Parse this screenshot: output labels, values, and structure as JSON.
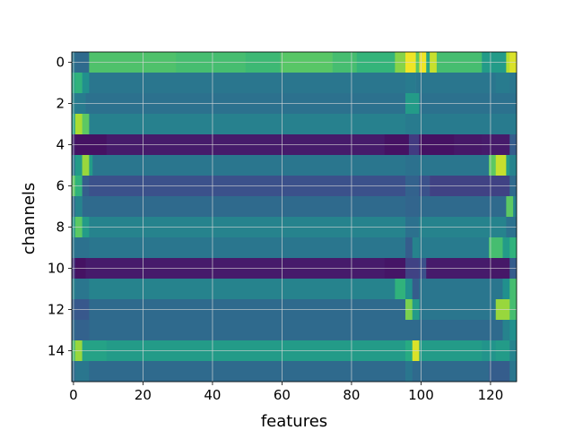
{
  "chart_data": {
    "type": "heatmap",
    "title": "",
    "xlabel": "features",
    "ylabel": "channels",
    "xlim": [
      -0.5,
      127.5
    ],
    "ylim": [
      15.5,
      -0.5
    ],
    "n_rows": 16,
    "n_cols": 128,
    "x_ticks": [
      0,
      20,
      40,
      60,
      80,
      100,
      120
    ],
    "y_ticks": [
      0,
      2,
      4,
      6,
      8,
      10,
      12,
      14
    ],
    "grid": true,
    "colormap": "viridis",
    "value_range": [
      0,
      1
    ],
    "rows": [
      {
        "channel": 0,
        "segments": [
          [
            0,
            1,
            0.4
          ],
          [
            1,
            5,
            0.35
          ],
          [
            5,
            30,
            0.72
          ],
          [
            30,
            50,
            0.7
          ],
          [
            50,
            60,
            0.68
          ],
          [
            60,
            75,
            0.74
          ],
          [
            75,
            82,
            0.7
          ],
          [
            82,
            93,
            0.66
          ],
          [
            93,
            96,
            0.82
          ],
          [
            96,
            99,
            0.98
          ],
          [
            99,
            100,
            0.75
          ],
          [
            100,
            102,
            0.98
          ],
          [
            102,
            103,
            0.6
          ],
          [
            103,
            105,
            0.92
          ],
          [
            105,
            118,
            0.7
          ],
          [
            118,
            125,
            0.55
          ],
          [
            125,
            126,
            0.9
          ],
          [
            126,
            128,
            0.95
          ]
        ]
      },
      {
        "channel": 1,
        "segments": [
          [
            0,
            1,
            0.6
          ],
          [
            1,
            3,
            0.65
          ],
          [
            3,
            5,
            0.5
          ],
          [
            5,
            96,
            0.4
          ],
          [
            96,
            99,
            0.42
          ],
          [
            99,
            122,
            0.4
          ],
          [
            122,
            126,
            0.42
          ],
          [
            126,
            128,
            0.4
          ]
        ]
      },
      {
        "channel": 2,
        "segments": [
          [
            0,
            1,
            0.45
          ],
          [
            1,
            4,
            0.42
          ],
          [
            4,
            96,
            0.38
          ],
          [
            96,
            100,
            0.55
          ],
          [
            100,
            122,
            0.38
          ],
          [
            122,
            128,
            0.38
          ]
        ]
      },
      {
        "channel": 3,
        "segments": [
          [
            0,
            1,
            0.6
          ],
          [
            1,
            3,
            0.88
          ],
          [
            3,
            5,
            0.75
          ],
          [
            5,
            96,
            0.44
          ],
          [
            96,
            100,
            0.42
          ],
          [
            100,
            128,
            0.42
          ]
        ]
      },
      {
        "channel": 4,
        "segments": [
          [
            0,
            1,
            0.1
          ],
          [
            1,
            10,
            0.05
          ],
          [
            10,
            90,
            0.08
          ],
          [
            90,
            97,
            0.05
          ],
          [
            97,
            100,
            0.18
          ],
          [
            100,
            110,
            0.05
          ],
          [
            110,
            118,
            0.07
          ],
          [
            118,
            126,
            0.08
          ],
          [
            126,
            128,
            0.3
          ]
        ]
      },
      {
        "channel": 5,
        "segments": [
          [
            0,
            1,
            0.4
          ],
          [
            1,
            3,
            0.55
          ],
          [
            3,
            5,
            0.85
          ],
          [
            5,
            6,
            0.55
          ],
          [
            6,
            96,
            0.4
          ],
          [
            96,
            100,
            0.38
          ],
          [
            100,
            120,
            0.4
          ],
          [
            120,
            122,
            0.75
          ],
          [
            122,
            125,
            0.92
          ],
          [
            125,
            126,
            0.55
          ],
          [
            126,
            128,
            0.45
          ]
        ]
      },
      {
        "channel": 6,
        "segments": [
          [
            0,
            1,
            0.75
          ],
          [
            1,
            3,
            0.65
          ],
          [
            3,
            5,
            0.3
          ],
          [
            5,
            96,
            0.25
          ],
          [
            96,
            100,
            0.32
          ],
          [
            100,
            103,
            0.25
          ],
          [
            103,
            126,
            0.2
          ],
          [
            126,
            128,
            0.35
          ]
        ]
      },
      {
        "channel": 7,
        "segments": [
          [
            0,
            1,
            0.35
          ],
          [
            1,
            3,
            0.45
          ],
          [
            3,
            96,
            0.35
          ],
          [
            96,
            100,
            0.33
          ],
          [
            100,
            125,
            0.35
          ],
          [
            125,
            127,
            0.75
          ],
          [
            127,
            128,
            0.45
          ]
        ]
      },
      {
        "channel": 8,
        "segments": [
          [
            0,
            1,
            0.55
          ],
          [
            1,
            3,
            0.75
          ],
          [
            3,
            5,
            0.55
          ],
          [
            5,
            96,
            0.45
          ],
          [
            96,
            100,
            0.38
          ],
          [
            100,
            120,
            0.45
          ],
          [
            120,
            125,
            0.45
          ],
          [
            125,
            128,
            0.38
          ]
        ]
      },
      {
        "channel": 9,
        "segments": [
          [
            0,
            1,
            0.4
          ],
          [
            1,
            5,
            0.38
          ],
          [
            5,
            96,
            0.4
          ],
          [
            96,
            98,
            0.3
          ],
          [
            98,
            100,
            0.45
          ],
          [
            100,
            120,
            0.42
          ],
          [
            120,
            124,
            0.7
          ],
          [
            124,
            126,
            0.55
          ],
          [
            126,
            128,
            0.65
          ]
        ]
      },
      {
        "channel": 10,
        "segments": [
          [
            0,
            1,
            0.15
          ],
          [
            1,
            4,
            0.05
          ],
          [
            4,
            90,
            0.08
          ],
          [
            90,
            96,
            0.06
          ],
          [
            96,
            100,
            0.2
          ],
          [
            100,
            102,
            0.25
          ],
          [
            102,
            120,
            0.08
          ],
          [
            120,
            126,
            0.07
          ],
          [
            126,
            128,
            0.3
          ]
        ]
      },
      {
        "channel": 11,
        "segments": [
          [
            0,
            1,
            0.45
          ],
          [
            1,
            5,
            0.4
          ],
          [
            5,
            93,
            0.45
          ],
          [
            93,
            96,
            0.65
          ],
          [
            96,
            98,
            0.5
          ],
          [
            98,
            100,
            0.3
          ],
          [
            100,
            124,
            0.4
          ],
          [
            124,
            126,
            0.5
          ],
          [
            126,
            128,
            0.7
          ]
        ]
      },
      {
        "channel": 12,
        "segments": [
          [
            0,
            1,
            0.3
          ],
          [
            1,
            5,
            0.28
          ],
          [
            5,
            96,
            0.35
          ],
          [
            96,
            98,
            0.8
          ],
          [
            98,
            100,
            0.55
          ],
          [
            100,
            122,
            0.4
          ],
          [
            122,
            126,
            0.85
          ],
          [
            126,
            128,
            0.7
          ]
        ]
      },
      {
        "channel": 13,
        "segments": [
          [
            0,
            1,
            0.35
          ],
          [
            1,
            5,
            0.32
          ],
          [
            5,
            96,
            0.35
          ],
          [
            96,
            100,
            0.35
          ],
          [
            100,
            124,
            0.35
          ],
          [
            124,
            126,
            0.45
          ],
          [
            126,
            128,
            0.5
          ]
        ]
      },
      {
        "channel": 14,
        "segments": [
          [
            0,
            1,
            0.7
          ],
          [
            1,
            3,
            0.85
          ],
          [
            3,
            10,
            0.58
          ],
          [
            10,
            96,
            0.55
          ],
          [
            96,
            98,
            0.62
          ],
          [
            98,
            100,
            0.95
          ],
          [
            100,
            118,
            0.55
          ],
          [
            118,
            122,
            0.52
          ],
          [
            122,
            126,
            0.55
          ],
          [
            126,
            128,
            0.45
          ]
        ]
      },
      {
        "channel": 15,
        "segments": [
          [
            0,
            1,
            0.35
          ],
          [
            1,
            5,
            0.4
          ],
          [
            5,
            96,
            0.35
          ],
          [
            96,
            98,
            0.4
          ],
          [
            98,
            100,
            0.35
          ],
          [
            100,
            120,
            0.35
          ],
          [
            120,
            126,
            0.3
          ],
          [
            126,
            128,
            0.4
          ]
        ]
      }
    ]
  }
}
